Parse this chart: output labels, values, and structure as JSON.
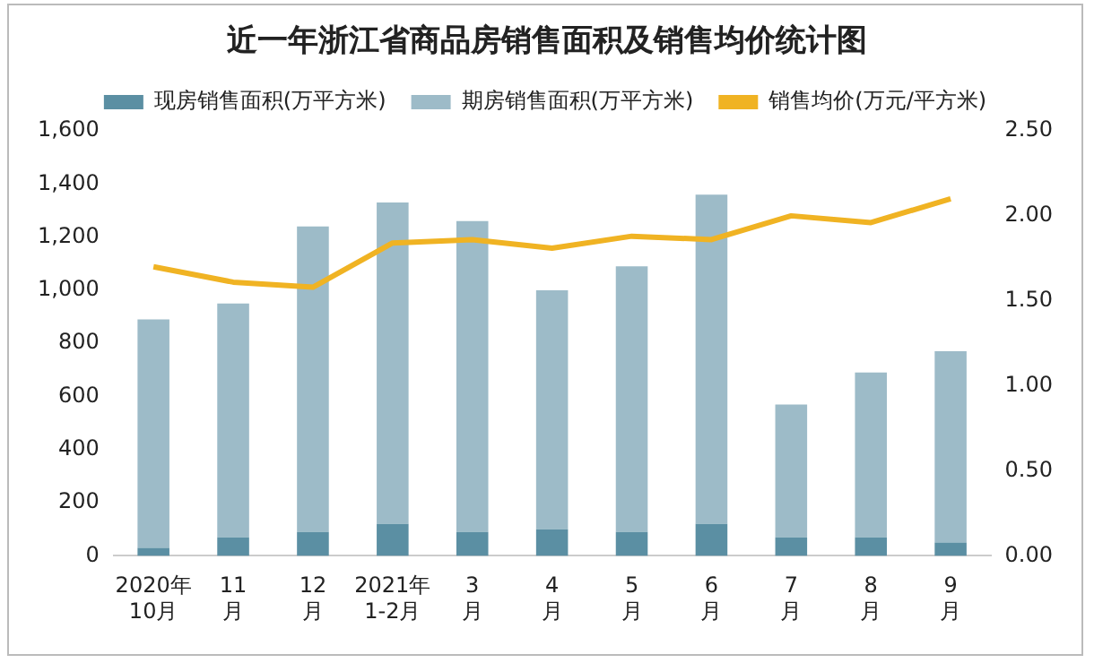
{
  "chart_data": {
    "type": "bar",
    "title": "近一年浙江省商品房销售面积及销售均价统计图",
    "stacked": true,
    "legend": "top",
    "grid": false,
    "marker": "none",
    "categories": [
      "2020年\n10月",
      "11\n月",
      "12\n月",
      "2021年\n1-2月",
      "3\n月",
      "4\n月",
      "5\n月",
      "6\n月",
      "7\n月",
      "8\n月",
      "9\n月"
    ],
    "series": [
      {
        "name": "现房销售面积(万平方米)",
        "color": "#5b8fa3",
        "values": [
          30,
          70,
          90,
          120,
          90,
          100,
          90,
          120,
          70,
          70,
          50
        ]
      },
      {
        "name": "期房销售面积(万平方米)",
        "color": "#9dbbc8",
        "values": [
          860,
          880,
          1150,
          1210,
          1170,
          900,
          1000,
          1240,
          500,
          620,
          720
        ]
      },
      {
        "name": "销售均价(万元/平方米)",
        "type": "line",
        "axis": "y2",
        "color": "#f0b323",
        "values": [
          1.7,
          1.61,
          1.58,
          1.84,
          1.86,
          1.81,
          1.88,
          1.86,
          2.0,
          1.96,
          2.1
        ]
      }
    ],
    "ylim": [
      0,
      1600
    ],
    "yticks": [
      0,
      200,
      400,
      600,
      800,
      {
        "value": 1000,
        "label": "1,000"
      },
      {
        "value": 1200,
        "label": "1,200"
      },
      {
        "value": 1400,
        "label": "1,400"
      },
      {
        "value": 1600,
        "label": "1,600"
      }
    ],
    "y2lim": [
      0,
      2.5
    ],
    "y2ticks": [
      {
        "value": 0,
        "label": "0.00"
      },
      {
        "value": 0.5,
        "label": "0.50"
      },
      {
        "value": 1,
        "label": "1.00"
      },
      {
        "value": 1.5,
        "label": "1.50"
      },
      {
        "value": 2,
        "label": "2.00"
      },
      {
        "value": 2.5,
        "label": "2.50"
      }
    ]
  }
}
